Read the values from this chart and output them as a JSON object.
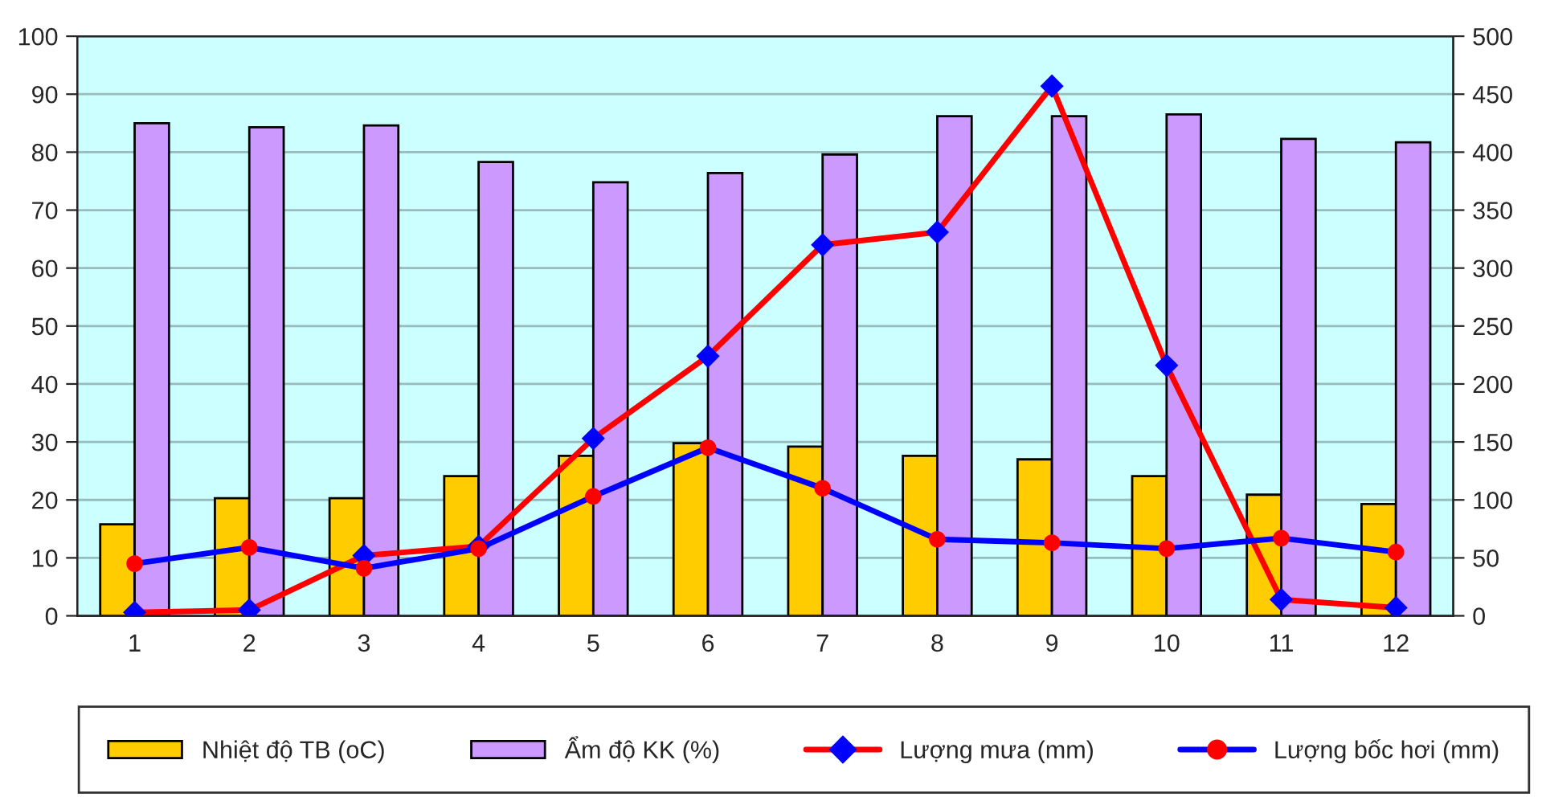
{
  "chart_data": {
    "type": "bar",
    "categories": [
      "1",
      "2",
      "3",
      "4",
      "5",
      "6",
      "7",
      "8",
      "9",
      "10",
      "11",
      "12"
    ],
    "series": [
      {
        "name": "Nhiệt độ TB (oC)",
        "color": "#ffcc00",
        "values": [
          15.8,
          20.3,
          20.3,
          24.1,
          27.6,
          29.8,
          29.2,
          27.6,
          27.0,
          24.1,
          20.9,
          19.3
        ]
      },
      {
        "name": "Ẩm độ KK (%)",
        "color": "#cc99ff",
        "values": [
          85,
          84.3,
          84.6,
          78.3,
          74.8,
          76.4,
          79.6,
          86.2,
          86.2,
          86.5,
          82.3,
          81.7
        ]
      },
      {
        "name": "Lượng mưa (mm)",
        "type": "line",
        "axis": "y2",
        "color": "#ff0000",
        "colors": [
          "#0000ff",
          "#0000ff",
          "#0000ff",
          "#0000ff",
          "#0000ff",
          "#0000ff",
          "#0000ff",
          "#0000ff",
          "#0000ff",
          "#0000ff",
          "#0000ff",
          "#0000ff"
        ],
        "marker": "diamond",
        "values": [
          3,
          5,
          52,
          60,
          153,
          224,
          320,
          331,
          457,
          216,
          14,
          7
        ]
      },
      {
        "name": "Lượng bốc hơi (mm)",
        "type": "line",
        "axis": "y2",
        "color": "#0000ff",
        "colors": [
          "#ff0000",
          "#ff0000",
          "#ff0000",
          "#ff0000",
          "#ff0000",
          "#ff0000",
          "#ff0000",
          "#ff0000",
          "#ff0000",
          "#ff0000",
          "#ff0000",
          "#ff0000"
        ],
        "marker": "circle",
        "values": [
          45,
          59,
          41,
          58,
          103,
          145,
          110,
          66,
          63,
          58,
          67,
          55
        ]
      }
    ],
    "ylim": [
      0,
      100
    ],
    "yticks": [
      0,
      10,
      20,
      30,
      40,
      50,
      60,
      70,
      80,
      90,
      100
    ],
    "y2lim": [
      0,
      500
    ],
    "y2ticks": [
      0,
      50,
      100,
      150,
      200,
      250,
      300,
      350,
      400,
      450,
      500
    ],
    "grid": "y",
    "legend": "bottom",
    "line_style": "solid"
  }
}
